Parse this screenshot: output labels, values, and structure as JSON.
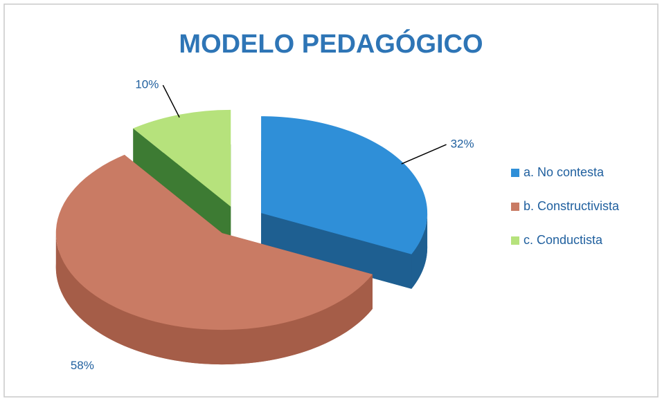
{
  "chart_data": {
    "type": "pie3d",
    "title": "MODELO PEDAGÓGICO",
    "categories": [
      "a. No contesta",
      "b. Constructivista",
      "c. Conductista"
    ],
    "values": [
      32,
      58,
      10
    ],
    "value_labels": [
      "32%",
      "58%",
      "10%"
    ],
    "colors": [
      "#2f8fd8",
      "#c97b64",
      "#b6e27c"
    ],
    "side_colors": [
      "#1e5f91",
      "#a55d48",
      "#3d7b33"
    ],
    "legend": "right"
  }
}
